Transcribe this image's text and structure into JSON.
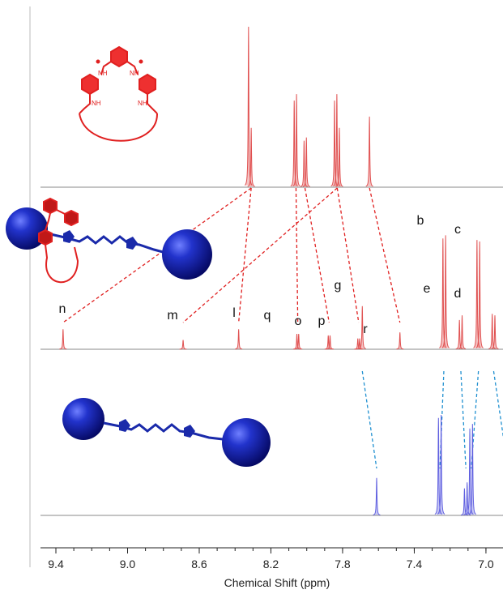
{
  "chart_data": {
    "type": "line",
    "xlabel": "Chemical Shift (ppm)",
    "xlim": [
      9.55,
      6.75
    ],
    "x_reversed": true,
    "x_ticks": [
      9.4,
      9.0,
      8.6,
      8.2,
      7.8,
      7.4,
      7.0
    ],
    "x_tick_labels": [
      "9.4",
      "9.0",
      "8.6",
      "8.2",
      "7.8",
      "7.4",
      "7.0"
    ],
    "colors": {
      "macrocycle": "#e05050",
      "rotaxane": "#e05050",
      "rotaxane_axle": "#6060e0",
      "axle": "#6060e0",
      "baseline": "#777777",
      "red_link": "#e02020",
      "blue_link": "#2090d0"
    },
    "series": [
      {
        "id": "macrocycle",
        "color": "#e05050",
        "peaks": [
          {
            "x": 8.325,
            "height": 1.0
          },
          {
            "x": 8.31,
            "height": 0.37
          },
          {
            "x": 8.07,
            "height": 0.54
          },
          {
            "x": 8.057,
            "height": 0.58
          },
          {
            "x": 8.015,
            "height": 0.29
          },
          {
            "x": 8.002,
            "height": 0.31
          },
          {
            "x": 7.845,
            "height": 0.54
          },
          {
            "x": 7.832,
            "height": 0.58
          },
          {
            "x": 7.818,
            "height": 0.37
          },
          {
            "x": 7.65,
            "height": 0.44
          }
        ]
      },
      {
        "id": "rotaxane",
        "color": "#e05050",
        "peaks": [
          {
            "x": 9.36,
            "height": 0.13,
            "label": "n"
          },
          {
            "x": 8.69,
            "height": 0.06,
            "label": "m"
          },
          {
            "x": 8.38,
            "height": 0.13,
            "label": "l"
          },
          {
            "x": 8.055,
            "height": 0.1,
            "label": "q"
          },
          {
            "x": 8.045,
            "height": 0.1
          },
          {
            "x": 7.88,
            "height": 0.09,
            "label": "o"
          },
          {
            "x": 7.87,
            "height": 0.09
          },
          {
            "x": 7.715,
            "height": 0.07,
            "label": "p"
          },
          {
            "x": 7.705,
            "height": 0.07
          },
          {
            "x": 7.69,
            "height": 0.28,
            "label": "g"
          },
          {
            "x": 7.48,
            "height": 0.11,
            "label": "r"
          },
          {
            "x": 7.24,
            "height": 0.72,
            "label": "b"
          },
          {
            "x": 7.225,
            "height": 0.74
          },
          {
            "x": 7.148,
            "height": 0.19,
            "label": "e"
          },
          {
            "x": 7.133,
            "height": 0.22
          },
          {
            "x": 7.05,
            "height": 0.71,
            "label": "c"
          },
          {
            "x": 7.035,
            "height": 0.7
          },
          {
            "x": 6.965,
            "height": 0.23,
            "label": "d"
          },
          {
            "x": 6.95,
            "height": 0.22
          }
        ]
      },
      {
        "id": "axle",
        "color": "#6060e0",
        "peaks": [
          {
            "x": 7.61,
            "height": 0.25
          },
          {
            "x": 7.265,
            "height": 0.65
          },
          {
            "x": 7.25,
            "height": 0.67
          },
          {
            "x": 7.12,
            "height": 0.18
          },
          {
            "x": 7.105,
            "height": 0.22
          },
          {
            "x": 7.09,
            "height": 0.58
          },
          {
            "x": 7.075,
            "height": 0.61
          },
          {
            "x": 6.885,
            "height": 0.19
          },
          {
            "x": 6.87,
            "height": 0.18
          }
        ]
      }
    ],
    "correlations": [
      {
        "color": "red",
        "from_series": "macrocycle",
        "from_x": 8.31,
        "to_series": "rotaxane",
        "to_x": 9.36
      },
      {
        "color": "red",
        "from_series": "macrocycle",
        "from_x": 8.31,
        "to_series": "rotaxane",
        "to_x": 8.38
      },
      {
        "color": "red",
        "from_series": "macrocycle",
        "from_x": 8.06,
        "to_series": "rotaxane",
        "to_x": 8.05
      },
      {
        "color": "red",
        "from_series": "macrocycle",
        "from_x": 8.01,
        "to_series": "rotaxane",
        "to_x": 7.875
      },
      {
        "color": "red",
        "from_series": "macrocycle",
        "from_x": 7.83,
        "to_series": "rotaxane",
        "to_x": 8.69
      },
      {
        "color": "red",
        "from_series": "macrocycle",
        "from_x": 7.83,
        "to_series": "rotaxane",
        "to_x": 7.71
      },
      {
        "color": "red",
        "from_series": "macrocycle",
        "from_x": 7.65,
        "to_series": "rotaxane",
        "to_x": 7.48
      },
      {
        "color": "blue",
        "from_series": "rotaxane",
        "from_x": 7.69,
        "to_series": "axle",
        "to_x": 7.61
      },
      {
        "color": "blue",
        "from_series": "rotaxane",
        "from_x": 7.235,
        "to_series": "axle",
        "to_x": 7.257
      },
      {
        "color": "blue",
        "from_series": "rotaxane",
        "from_x": 7.14,
        "to_series": "axle",
        "to_x": 7.112
      },
      {
        "color": "blue",
        "from_series": "rotaxane",
        "from_x": 7.042,
        "to_series": "axle",
        "to_x": 7.082
      },
      {
        "color": "blue",
        "from_series": "rotaxane",
        "from_x": 6.957,
        "to_series": "axle",
        "to_x": 6.877
      }
    ],
    "structure_labels": [
      "NH",
      "NH",
      "NH",
      "NH"
    ],
    "grid": false
  }
}
